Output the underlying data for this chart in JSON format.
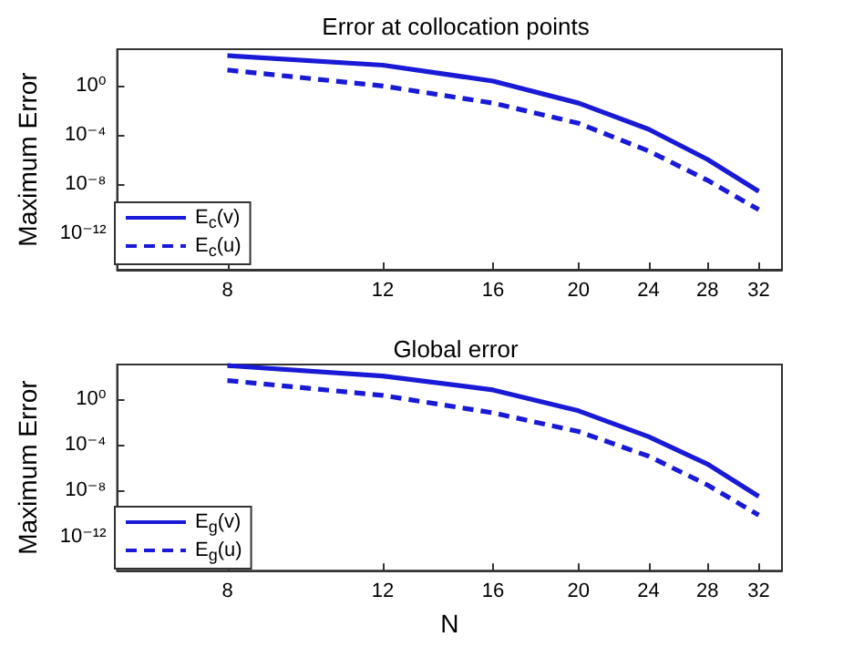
{
  "chart_data": [
    {
      "type": "line",
      "title": "Error at collocation points",
      "ylabel": "Maximum Error",
      "x": [
        8,
        12,
        16,
        20,
        24,
        28,
        32
      ],
      "log": "xy",
      "xlim": [
        6,
        34
      ],
      "xticks": [
        8,
        12,
        16,
        20,
        24,
        28,
        32
      ],
      "ylim": [
        1e-15,
        1000
      ],
      "yticks": [
        {
          "value": 1e-12,
          "label": "10⁻¹²"
        },
        {
          "value": 1e-08,
          "label": "10⁻⁸"
        },
        {
          "value": 0.0001,
          "label": "10⁻⁴"
        },
        {
          "value": 1,
          "label": "10⁰"
        }
      ],
      "grid": false,
      "legend": "bottom left",
      "marker": "none",
      "series": [
        {
          "name": "E$_{c}$(v)",
          "color": "#1a1ad6",
          "line_style": "solid",
          "values": [
            300,
            50,
            2.5,
            0.04,
            0.0003,
            1e-06,
            2.5e-09
          ]
        },
        {
          "name": "E$_{c}$(u)",
          "color": "#1a1ad6",
          "line_style": "dashed",
          "values": [
            20,
            1,
            0.04,
            0.0009,
            5e-06,
            2e-08,
            8e-11
          ]
        }
      ]
    },
    {
      "type": "line",
      "title": "Global error",
      "xlabel": "N",
      "ylabel": "Maximum Error",
      "x": [
        8,
        12,
        16,
        20,
        24,
        28,
        32
      ],
      "log": "xy",
      "xlim": [
        6,
        34
      ],
      "xticks": [
        8,
        12,
        16,
        20,
        24,
        28,
        32
      ],
      "ylim": [
        1e-15,
        1000
      ],
      "yticks": [
        {
          "value": 1e-12,
          "label": "10⁻¹²"
        },
        {
          "value": 1e-08,
          "label": "10⁻⁸"
        },
        {
          "value": 0.0001,
          "label": "10⁻⁴"
        },
        {
          "value": 1,
          "label": "10⁰"
        }
      ],
      "grid": false,
      "legend": "bottom left",
      "marker": "none",
      "series": [
        {
          "name": "E$_{g}$(v)",
          "color": "#1a1ad6",
          "line_style": "solid",
          "values": [
            800,
            100,
            6,
            0.09,
            0.0005,
            2e-06,
            3e-09
          ]
        },
        {
          "name": "E$_{g}$(u)",
          "color": "#1a1ad6",
          "line_style": "dashed",
          "values": [
            40,
            2,
            0.06,
            0.0014,
            1e-05,
            3e-08,
            7e-11
          ]
        }
      ]
    }
  ]
}
